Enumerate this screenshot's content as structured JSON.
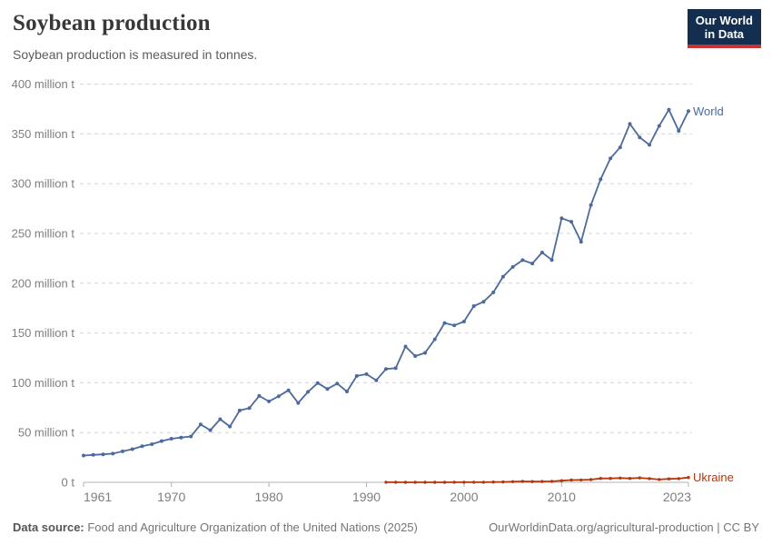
{
  "header": {
    "title": "Soybean production",
    "subtitle": "Soybean production is measured in tonnes.",
    "logo": {
      "line1": "Our World",
      "line2": "in Data"
    }
  },
  "footer": {
    "datasource_label": "Data source:",
    "datasource_value": " Food and Agriculture Organization of the United Nations (2025)",
    "link_text": "OurWorldinData.org/agricultural-production | CC BY"
  },
  "colors": {
    "world_line": "#4c6a9c",
    "ukraine_line": "#b5360c",
    "logo_bg": "#132e4f",
    "logo_stripe": "#cb3030",
    "gridline": "#d6d6d6",
    "axis": "#b3b3b3",
    "tick_label": "#7e7e7e"
  },
  "chart_data": {
    "type": "line",
    "title": "Soybean production",
    "subtitle": "Soybean production is measured in tonnes.",
    "unit": "tonnes",
    "xlim": [
      1961,
      2023
    ],
    "ylim": [
      0,
      400
    ],
    "grid": "horizontal-dashed",
    "legend_position": "end-of-line-labels",
    "x_ticks": [
      {
        "value": 1961,
        "label": "1961"
      },
      {
        "value": 1970,
        "label": "1970"
      },
      {
        "value": 1980,
        "label": "1980"
      },
      {
        "value": 1990,
        "label": "1990"
      },
      {
        "value": 2000,
        "label": "2000"
      },
      {
        "value": 2010,
        "label": "2010"
      },
      {
        "value": 2023,
        "label": "2023"
      }
    ],
    "y_ticks": [
      {
        "value": 0,
        "label": "0 t"
      },
      {
        "value": 50,
        "label": "50 million t"
      },
      {
        "value": 100,
        "label": "100 million t"
      },
      {
        "value": 150,
        "label": "150 million t"
      },
      {
        "value": 200,
        "label": "200 million t"
      },
      {
        "value": 250,
        "label": "250 million t"
      },
      {
        "value": 300,
        "label": "300 million t"
      },
      {
        "value": 350,
        "label": "350 million t"
      },
      {
        "value": 400,
        "label": "400 million t"
      }
    ],
    "value_unit_note": "values in million tonnes",
    "series": [
      {
        "name": "World",
        "color": "#4c6a9c",
        "start_year": 1961,
        "values": [
          26.9,
          27.6,
          28.1,
          28.8,
          31.1,
          33.3,
          36.2,
          38.3,
          41.4,
          43.8,
          45.0,
          46.1,
          58.1,
          52.4,
          63.4,
          56.0,
          72.2,
          74.6,
          86.8,
          81.3,
          86.5,
          92.4,
          79.7,
          90.9,
          99.7,
          93.8,
          99.2,
          91.2,
          106.8,
          108.7,
          102.5,
          113.9,
          114.7,
          136.4,
          126.8,
          130.0,
          143.6,
          160.0,
          157.7,
          161.5,
          177.0,
          181.4,
          190.8,
          206.6,
          216.3,
          223.2,
          219.8,
          230.8,
          223.4,
          265.2,
          261.8,
          241.6,
          278.5,
          304.4,
          325.4,
          336.5,
          360.0,
          346.5,
          339.0,
          358.0,
          374.4,
          353.0,
          372.9
        ]
      },
      {
        "name": "Ukraine",
        "color": "#b5360c",
        "start_year": 1992,
        "values": [
          0.1,
          0.06,
          0.03,
          0.02,
          0.02,
          0.02,
          0.04,
          0.05,
          0.06,
          0.07,
          0.12,
          0.23,
          0.36,
          0.61,
          0.89,
          0.72,
          0.81,
          1.04,
          1.68,
          2.26,
          2.41,
          2.77,
          3.88,
          3.93,
          4.28,
          3.9,
          4.46,
          3.7,
          2.8,
          3.49,
          3.74,
          4.83
        ]
      }
    ]
  }
}
